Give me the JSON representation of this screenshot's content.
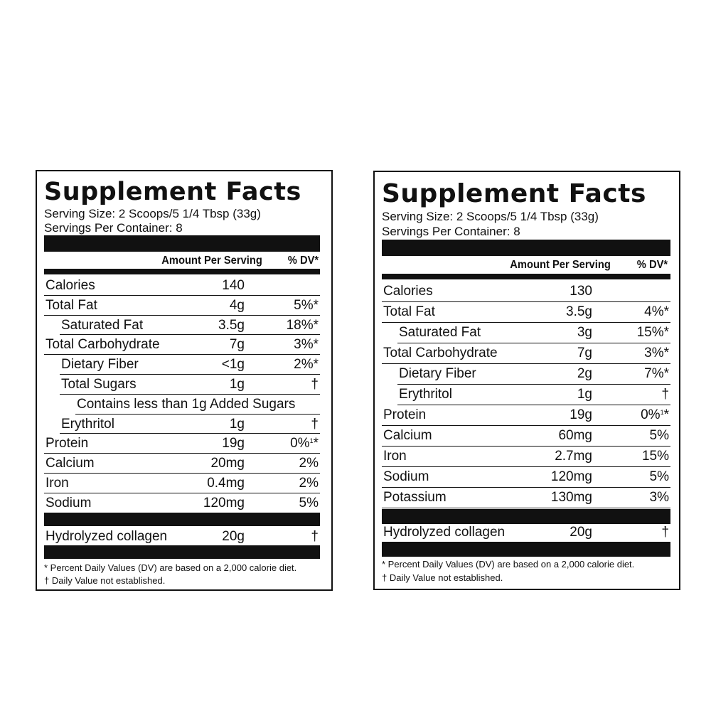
{
  "labels": [
    {
      "title": "Supplement Facts",
      "serving_size": "Serving Size: 2 Scoops/5 1/4 Tbsp (33g)",
      "servings_per_container": "Servings Per Container: 8",
      "header_amount": "Amount Per Serving",
      "header_dv": "% DV*",
      "rows": [
        {
          "name": "Calories",
          "amount": "140",
          "dv": "",
          "indent": 0
        },
        {
          "name": "Total Fat",
          "amount": "4g",
          "dv": "5%*",
          "indent": 0
        },
        {
          "name": "Saturated Fat",
          "amount": "3.5g",
          "dv": "18%*",
          "indent": 1
        },
        {
          "name": "Total Carbohydrate",
          "amount": "7g",
          "dv": "3%*",
          "indent": 0
        },
        {
          "name": "Dietary Fiber",
          "amount": "<1g",
          "dv": "2%*",
          "indent": 1
        },
        {
          "name": "Total Sugars",
          "amount": "1g",
          "dv": "†",
          "indent": 1
        },
        {
          "name": "Contains less than 1g Added Sugars",
          "amount": "",
          "dv": "",
          "indent": 2
        },
        {
          "name": "Erythritol",
          "amount": "1g",
          "dv": "†",
          "indent": 1
        },
        {
          "name": "Protein",
          "amount": "19g",
          "dv": "0%",
          "dv_sup": "1",
          "dv_suffix": "*",
          "indent": 0
        },
        {
          "name": "Calcium",
          "amount": "20mg",
          "dv": "2%",
          "indent": 0
        },
        {
          "name": "Iron",
          "amount": "0.4mg",
          "dv": "2%",
          "indent": 0
        },
        {
          "name": "Sodium",
          "amount": "120mg",
          "dv": "5%",
          "indent": 0
        }
      ],
      "blend": {
        "name": "Hydrolyzed collagen",
        "amount": "20g",
        "dv": "†"
      },
      "footnote_1": "* Percent Daily Values (DV) are based on a 2,000 calorie diet.",
      "footnote_2": "† Daily Value not established."
    },
    {
      "title": "Supplement Facts",
      "serving_size": "Serving Size: 2 Scoops/5 1/4 Tbsp (33g)",
      "servings_per_container": "Servings Per Container: 8",
      "header_amount": "Amount Per Serving",
      "header_dv": "% DV*",
      "rows": [
        {
          "name": "Calories",
          "amount": "130",
          "dv": "",
          "indent": 0
        },
        {
          "name": "Total Fat",
          "amount": "3.5g",
          "dv": "4%*",
          "indent": 0
        },
        {
          "name": "Saturated Fat",
          "amount": "3g",
          "dv": "15%*",
          "indent": 1
        },
        {
          "name": "Total Carbohydrate",
          "amount": "7g",
          "dv": "3%*",
          "indent": 0
        },
        {
          "name": "Dietary Fiber",
          "amount": "2g",
          "dv": "7%*",
          "indent": 1
        },
        {
          "name": "Erythritol",
          "amount": "1g",
          "dv": "†",
          "indent": 1
        },
        {
          "name": "Protein",
          "amount": "19g",
          "dv": "0%",
          "dv_sup": "1",
          "dv_suffix": "*",
          "indent": 0
        },
        {
          "name": "Calcium",
          "amount": "60mg",
          "dv": "5%",
          "indent": 0
        },
        {
          "name": "Iron",
          "amount": "2.7mg",
          "dv": "15%",
          "indent": 0
        },
        {
          "name": "Sodium",
          "amount": "120mg",
          "dv": "5%",
          "indent": 0
        },
        {
          "name": "Potassium",
          "amount": "130mg",
          "dv": "3%",
          "indent": 0
        }
      ],
      "blend": {
        "name": "Hydrolyzed collagen",
        "amount": "20g",
        "dv": "†"
      },
      "footnote_1": "* Percent Daily Values (DV) are based on a 2,000 calorie diet.",
      "footnote_2": "† Daily Value not established."
    }
  ]
}
